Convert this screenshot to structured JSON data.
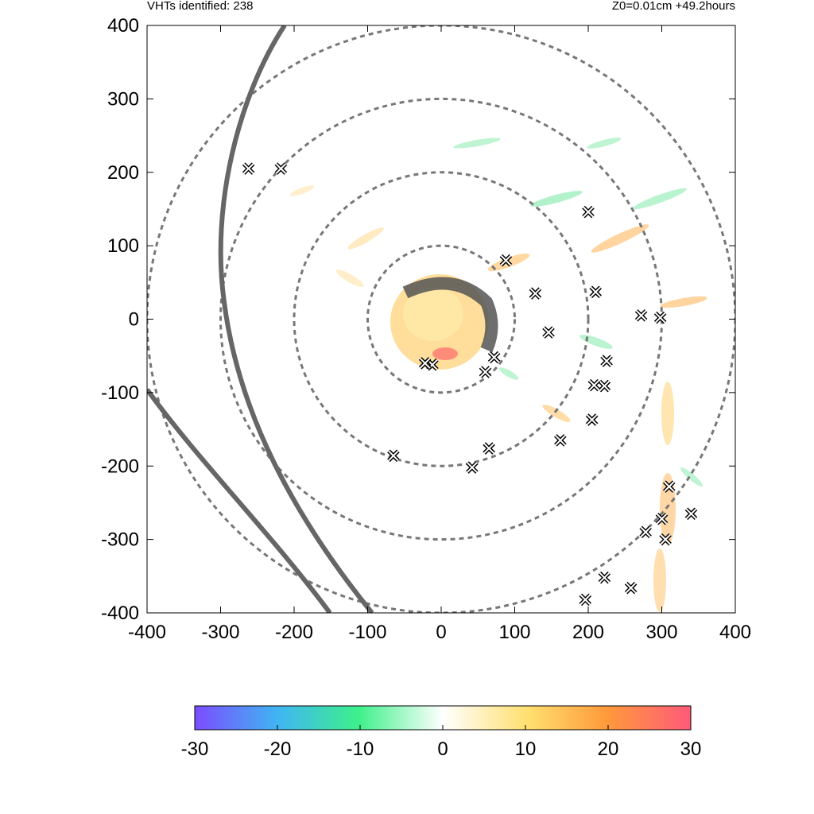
{
  "header": {
    "left": "VHTs identified: 238",
    "right": "Z0=0.01cm  +49.2hours"
  },
  "chart_data": {
    "type": "scatter",
    "title": "",
    "xlabel": "",
    "ylabel": "",
    "xlim": [
      -400,
      400
    ],
    "ylim": [
      -400,
      400
    ],
    "xticks": [
      "-400",
      "-300",
      "-200",
      "-100",
      "0",
      "100",
      "200",
      "300",
      "400"
    ],
    "yticks": [
      "400",
      "300",
      "200",
      "100",
      "0",
      "-100",
      "-200",
      "-300",
      "-400"
    ],
    "grid": false,
    "range_rings_km": [
      100,
      200,
      300,
      400
    ],
    "colorbar": {
      "ticks": [
        "-30",
        "-20",
        "-10",
        "0",
        "10",
        "20",
        "30"
      ],
      "range": [
        -30,
        30
      ],
      "colors": [
        "#7b4dff",
        "#3fb6f2",
        "#3ef08a",
        "#ffffff",
        "#ffe070",
        "#ff9a3a",
        "#ff5a7a"
      ]
    },
    "series": [
      {
        "marker": "x",
        "color": "#000000",
        "x": [
          -262,
          -218,
          -65,
          42,
          65,
          128,
          146,
          72,
          200,
          210,
          225,
          205,
          222,
          208,
          162,
          272,
          298,
          310,
          300,
          305,
          278,
          340,
          222,
          258,
          196,
          -12,
          -22,
          88,
          60
        ],
        "y": [
          205,
          205,
          -186,
          -202,
          -176,
          35,
          -18,
          -52,
          146,
          37,
          -57,
          -137,
          -91,
          -90,
          -165,
          5,
          2,
          -228,
          -272,
          -300,
          -290,
          -265,
          -352,
          -366,
          -382,
          -62,
          -60,
          80,
          -72
        ]
      }
    ]
  }
}
